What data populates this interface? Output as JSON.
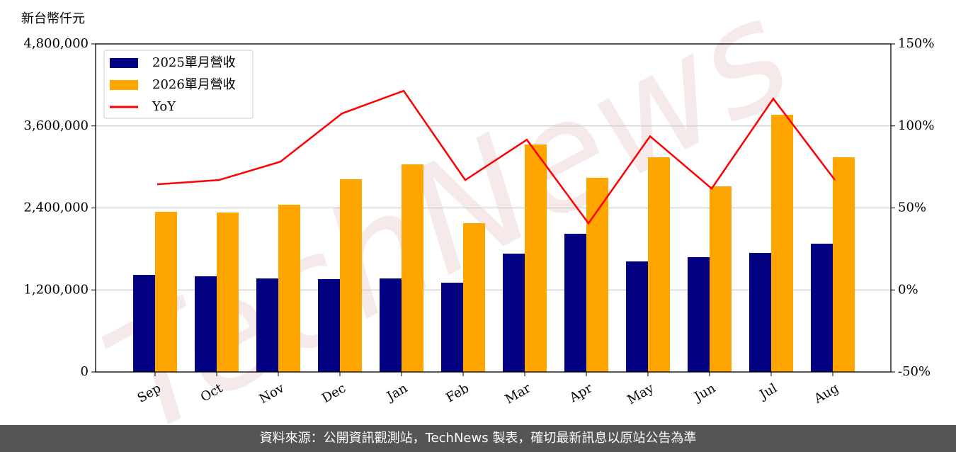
{
  "chart_data": {
    "type": "bar",
    "ylabel": "新台幣仟元",
    "watermark": "TechNews",
    "categories": [
      "Sep",
      "Oct",
      "Nov",
      "Dec",
      "Jan",
      "Feb",
      "Mar",
      "Apr",
      "May",
      "Jun",
      "Jul",
      "Aug"
    ],
    "series": [
      {
        "name": "2025單月營收",
        "type": "bar",
        "color": "#000080",
        "values": [
          1420000,
          1400000,
          1368000,
          1358000,
          1368000,
          1306000,
          1731000,
          2022000,
          1617000,
          1680000,
          1742000,
          1877000
        ]
      },
      {
        "name": "2026單月營收",
        "type": "bar",
        "color": "#ffa500",
        "values": [
          2343000,
          2333000,
          2447000,
          2820000,
          3038000,
          2177000,
          3328000,
          2841000,
          3141000,
          2716000,
          3763000,
          3141000
        ]
      },
      {
        "name": "YoY",
        "type": "line",
        "axis": "y2",
        "color": "#ff0000",
        "values": [
          64.4,
          67.0,
          78.2,
          107.6,
          121.4,
          67.0,
          91.6,
          40.6,
          93.7,
          61.8,
          116.6,
          67.0
        ]
      }
    ],
    "ylim": [
      0,
      4800000
    ],
    "yticks": [
      0,
      {
        "value": 1200000,
        "label": "1,200,000"
      },
      {
        "value": 2400000,
        "label": "2,400,000"
      },
      {
        "value": 3600000,
        "label": "3,600,000"
      },
      {
        "value": 4800000,
        "label": "4,800,000"
      }
    ],
    "y2lim": [
      -50,
      150
    ],
    "y2ticks": [
      {
        "value": -50,
        "label": "-50%"
      },
      {
        "value": 0,
        "label": "0%"
      },
      {
        "value": 50,
        "label": "50%"
      },
      {
        "value": 100,
        "label": "100%"
      },
      {
        "value": 150,
        "label": "150%"
      }
    ],
    "grid": true,
    "legend": "upper left"
  },
  "footer": "資料來源：公開資訊觀測站，TechNews 製表，確切最新訊息以原站公告為準"
}
